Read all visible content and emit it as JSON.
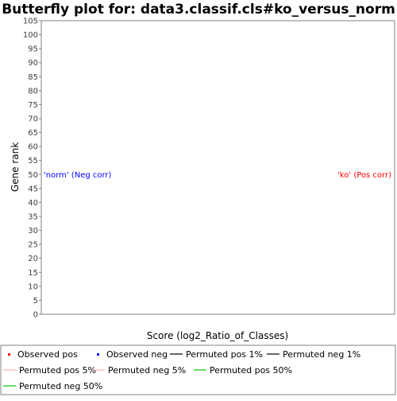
{
  "chart_data": {
    "type": "scatter",
    "title": "Butterfly plot for: data3.classif.cls#ko_versus_norm",
    "xlabel": "Score (log2_Ratio_of_Classes)",
    "ylabel": "Gene rank",
    "ylim": [
      0,
      105
    ],
    "y_ticks": [
      0,
      5,
      10,
      15,
      20,
      25,
      30,
      35,
      40,
      45,
      50,
      55,
      60,
      65,
      70,
      75,
      80,
      85,
      90,
      95,
      100,
      105
    ],
    "x_ticks": [],
    "grid": false,
    "annotations": [
      {
        "text": "'norm' (Neg corr)",
        "y": 50,
        "side": "left",
        "color": "#0000ff"
      },
      {
        "text": "'ko' (Pos corr)",
        "y": 50,
        "side": "right",
        "color": "#ff0000"
      }
    ],
    "series": [
      {
        "name": "Observed pos",
        "marker": "square",
        "color": "#ff0000",
        "points": []
      },
      {
        "name": "Observed neg",
        "marker": "square",
        "color": "#0000ff",
        "points": []
      },
      {
        "name": "Permuted pos 1%",
        "marker": "line",
        "color": "#000000",
        "points": []
      },
      {
        "name": "Permuted neg 1%",
        "marker": "line",
        "color": "#000000",
        "points": []
      },
      {
        "name": "Permuted pos 5%",
        "marker": "line",
        "color": "#ffafaf",
        "points": []
      },
      {
        "name": "Permuted neg 5%",
        "marker": "line",
        "color": "#ffafaf",
        "points": []
      },
      {
        "name": "Permuted pos 50%",
        "marker": "line",
        "color": "#00cc00",
        "points": []
      },
      {
        "name": "Permuted neg 50%",
        "marker": "line",
        "color": "#00cc00",
        "points": []
      }
    ],
    "legend_position": "bottom"
  }
}
